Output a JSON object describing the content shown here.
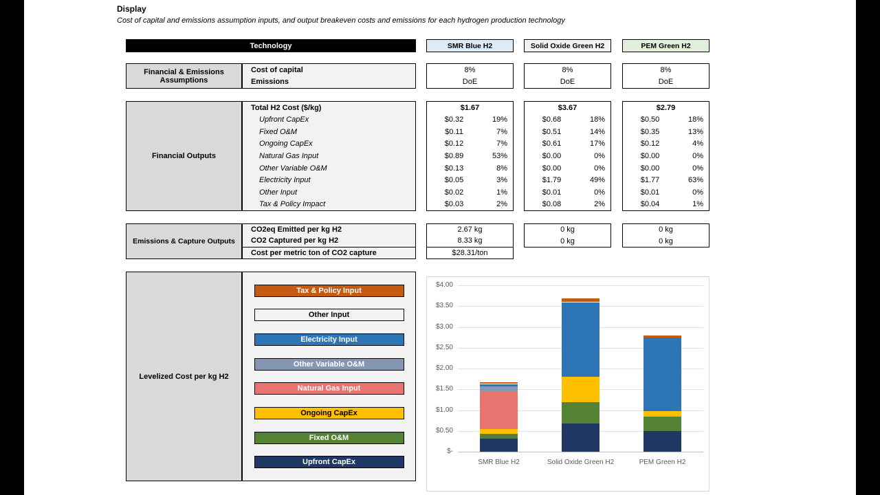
{
  "page": {
    "title": "Display",
    "subtitle": "Cost of capital and emissions assumption inputs, and output breakeven costs and emissions for each hydrogen production technology"
  },
  "technology": {
    "header_label": "Technology",
    "columns": [
      {
        "label": "SMR Blue H2",
        "bg": "#DDEBF7"
      },
      {
        "label": "Solid Oxide Green H2",
        "bg": "#F2F2F2"
      },
      {
        "label": "PEM Green H2",
        "bg": "#E2EFDA"
      }
    ]
  },
  "assumptions": {
    "section_label": "Financial & Emissions Assumptions",
    "row_labels": [
      "Cost of capital",
      "Emissions"
    ],
    "tech_values": [
      [
        "8%",
        "DoE"
      ],
      [
        "8%",
        "DoE"
      ],
      [
        "8%",
        "DoE"
      ]
    ]
  },
  "financial_outputs": {
    "section_label": "Financial Outputs",
    "total_label": "Total H2 Cost ($/kg)",
    "totals": [
      "$1.67",
      "$3.67",
      "$2.79"
    ],
    "row_labels": [
      "Upfront CapEx",
      "Fixed O&M",
      "Ongoing CapEx",
      "Natural Gas Input",
      "Other Variable O&M",
      "Electricity Input",
      "Other Input",
      "Tax & Policy Impact"
    ],
    "tech": [
      {
        "values": [
          "$0.32",
          "$0.11",
          "$0.12",
          "$0.89",
          "$0.13",
          "$0.05",
          "$0.02",
          "$0.03"
        ],
        "pcts": [
          "19%",
          "7%",
          "7%",
          "53%",
          "8%",
          "3%",
          "1%",
          "2%"
        ]
      },
      {
        "values": [
          "$0.68",
          "$0.51",
          "$0.61",
          "$0.00",
          "$0.00",
          "$1.79",
          "$0.01",
          "$0.08"
        ],
        "pcts": [
          "18%",
          "14%",
          "17%",
          "0%",
          "0%",
          "49%",
          "0%",
          "2%"
        ]
      },
      {
        "values": [
          "$0.50",
          "$0.35",
          "$0.12",
          "$0.00",
          "$0.00",
          "$1.77",
          "$0.01",
          "$0.04"
        ],
        "pcts": [
          "18%",
          "13%",
          "4%",
          "0%",
          "0%",
          "63%",
          "0%",
          "1%"
        ]
      }
    ]
  },
  "emissions": {
    "section_label": "Emissions & Capture Outputs",
    "row_labels": [
      "CO2eq Emitted per kg H2",
      "CO2 Captured per kg H2",
      "Cost per metric ton of CO2 capture"
    ],
    "tech": [
      {
        "rows": [
          "2.67 kg",
          "8.33 kg",
          "$28.31/ton"
        ]
      },
      {
        "rows": [
          "0 kg",
          "0 kg"
        ]
      },
      {
        "rows": [
          "0 kg",
          "0 kg"
        ]
      }
    ]
  },
  "levelized": {
    "section_label": "Levelized Cost per kg H2",
    "legend_items": [
      {
        "label": "Tax & Policy Input",
        "bg": "#C55A11",
        "fg": "#FFFFFF"
      },
      {
        "label": "Other Input",
        "bg": "#F2F2F2",
        "fg": "#000000"
      },
      {
        "label": "Electricity Input",
        "bg": "#2E75B6",
        "fg": "#FFFFFF"
      },
      {
        "label": "Other Variable O&M",
        "bg": "#8496B0",
        "fg": "#FFFFFF"
      },
      {
        "label": "Natural Gas Input",
        "bg": "#E8736F",
        "fg": "#FFFFFF"
      },
      {
        "label": "Ongoing CapEx",
        "bg": "#FFC000",
        "fg": "#000000"
      },
      {
        "label": "Fixed O&M",
        "bg": "#548235",
        "fg": "#FFFFFF"
      },
      {
        "label": "Upfront CapEx",
        "bg": "#1F3864",
        "fg": "#FFFFFF"
      }
    ]
  },
  "chart_data": {
    "type": "bar",
    "subtype": "stacked",
    "title": "",
    "xlabel": "",
    "ylabel": "",
    "categories": [
      "SMR Blue H2",
      "Solid Oxide Green H2",
      "PEM Green H2"
    ],
    "series": [
      {
        "name": "Upfront CapEx",
        "color": "#1F3864",
        "values": [
          0.32,
          0.68,
          0.5
        ]
      },
      {
        "name": "Fixed O&M",
        "color": "#548235",
        "values": [
          0.11,
          0.51,
          0.35
        ]
      },
      {
        "name": "Ongoing CapEx",
        "color": "#FFC000",
        "values": [
          0.12,
          0.61,
          0.12
        ]
      },
      {
        "name": "Natural Gas Input",
        "color": "#E8736F",
        "values": [
          0.89,
          0.0,
          0.0
        ]
      },
      {
        "name": "Other Variable O&M",
        "color": "#8496B0",
        "values": [
          0.13,
          0.0,
          0.0
        ]
      },
      {
        "name": "Electricity Input",
        "color": "#2E75B6",
        "values": [
          0.05,
          1.79,
          1.77
        ]
      },
      {
        "name": "Other Input",
        "color": "#FFFFFF",
        "values": [
          0.02,
          0.01,
          0.01
        ]
      },
      {
        "name": "Tax & Policy Impact",
        "color": "#C55A11",
        "values": [
          0.03,
          0.08,
          0.04
        ]
      }
    ],
    "ylim": [
      0,
      4
    ],
    "y_tick_step": 0.5,
    "y_tick_labels": [
      "$-",
      "$0.50",
      "$1.00",
      "$1.50",
      "$2.00",
      "$2.50",
      "$3.00",
      "$3.50",
      "$4.00"
    ],
    "grid": true,
    "legend_position": "left-panel"
  }
}
